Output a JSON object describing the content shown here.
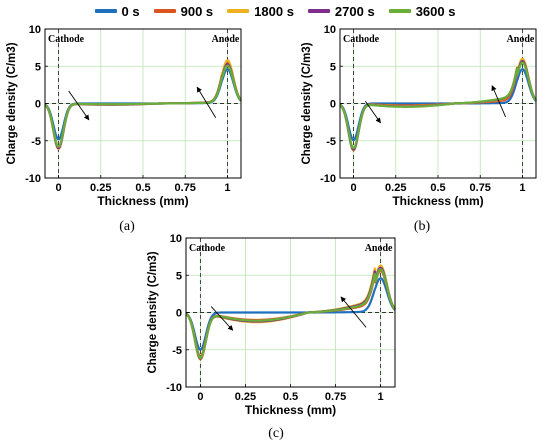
{
  "legend": [
    {
      "label": "0 s",
      "color": "#1f6fbf"
    },
    {
      "label": "900 s",
      "color": "#d9541e"
    },
    {
      "label": "1800 s",
      "color": "#edb120"
    },
    {
      "label": "2700 s",
      "color": "#7e2f8e"
    },
    {
      "label": "3600 s",
      "color": "#6aae3a"
    }
  ],
  "chart_data": [
    {
      "panel_label": "(a)",
      "type": "line",
      "xlabel": "Thickness (mm)",
      "ylabel": "Charge density (C/m3)",
      "xlim": [
        -0.08,
        1.08
      ],
      "ylim": [
        -10,
        10
      ],
      "xticks": [
        "0",
        "0.25",
        "0.5",
        "0.75",
        "1"
      ],
      "xtick_values": [
        0,
        0.25,
        0.5,
        0.75,
        1
      ],
      "yticks": [
        "-10",
        "-5",
        "0",
        "5",
        "10"
      ],
      "ytick_values": [
        -10,
        -5,
        0,
        5,
        10
      ],
      "grid": true,
      "annotations": [
        "Cathode",
        "Anode"
      ],
      "arrows": [
        {
          "from": [
            0.06,
            1.7
          ],
          "to": [
            0.18,
            -2.2
          ]
        },
        {
          "from": [
            0.93,
            -1.9
          ],
          "to": [
            0.82,
            2.2
          ]
        }
      ],
      "series": [
        {
          "name": "0 s",
          "cathode_peak": -4.8,
          "anode_peak": 4.6,
          "bulk": 0,
          "tail": 0.05
        },
        {
          "name": "900 s",
          "cathode_peak": -5.9,
          "anode_peak": 5.6,
          "bulk": -0.12,
          "tail": 0.1
        },
        {
          "name": "1800 s",
          "cathode_peak": -6.1,
          "anode_peak": 5.8,
          "bulk": -0.18,
          "tail": 0.12
        },
        {
          "name": "2700 s",
          "cathode_peak": -6.0,
          "anode_peak": 5.3,
          "bulk": -0.15,
          "tail": 0.1
        },
        {
          "name": "3600 s",
          "cathode_peak": -5.8,
          "anode_peak": 5.1,
          "bulk": -0.1,
          "tail": 0.08
        }
      ]
    },
    {
      "panel_label": "(b)",
      "type": "line",
      "xlabel": "Thickness (mm)",
      "ylabel": "Charge density (C/m3)",
      "xlim": [
        -0.08,
        1.08
      ],
      "ylim": [
        -10,
        10
      ],
      "xticks": [
        "0",
        "0.25",
        "0.5",
        "0.75",
        "1"
      ],
      "xtick_values": [
        0,
        0.25,
        0.5,
        0.75,
        1
      ],
      "yticks": [
        "-10",
        "-5",
        "0",
        "5",
        "10"
      ],
      "ytick_values": [
        -10,
        -5,
        0,
        5,
        10
      ],
      "grid": true,
      "annotations": [
        "Cathode",
        "Anode"
      ],
      "arrows": [
        {
          "from": [
            0.07,
            0.3
          ],
          "to": [
            0.16,
            -2.6
          ]
        },
        {
          "from": [
            0.9,
            -1.8
          ],
          "to": [
            0.82,
            2.4
          ]
        }
      ],
      "series": [
        {
          "name": "0 s",
          "cathode_peak": -4.9,
          "anode_peak": 4.6,
          "bulk": 0,
          "tail": 0.05
        },
        {
          "name": "900 s",
          "cathode_peak": -6.1,
          "anode_peak": 5.6,
          "bulk": -0.25,
          "tail": 0.3
        },
        {
          "name": "1800 s",
          "cathode_peak": -6.3,
          "anode_peak": 6.0,
          "bulk": -0.35,
          "tail": 0.45
        },
        {
          "name": "2700 s",
          "cathode_peak": -6.2,
          "anode_peak": 5.7,
          "bulk": -0.4,
          "tail": 0.5
        },
        {
          "name": "3600 s",
          "cathode_peak": -6.0,
          "anode_peak": 5.5,
          "bulk": -0.45,
          "tail": 0.55
        }
      ]
    },
    {
      "panel_label": "(c)",
      "type": "line",
      "xlabel": "Thickness (mm)",
      "ylabel": "Charge density (C/m3)",
      "xlim": [
        -0.08,
        1.08
      ],
      "ylim": [
        -10,
        10
      ],
      "xticks": [
        "0",
        "0.25",
        "0.5",
        "0.75",
        "1"
      ],
      "xtick_values": [
        0,
        0.25,
        0.5,
        0.75,
        1
      ],
      "yticks": [
        "-10",
        "-5",
        "0",
        "5",
        "10"
      ],
      "ytick_values": [
        -10,
        -5,
        0,
        5,
        10
      ],
      "grid": true,
      "annotations": [
        "Cathode",
        "Anode"
      ],
      "arrows": [
        {
          "from": [
            0.06,
            0.8
          ],
          "to": [
            0.18,
            -2.4
          ]
        },
        {
          "from": [
            0.92,
            -2.0
          ],
          "to": [
            0.78,
            2.1
          ]
        }
      ],
      "series": [
        {
          "name": "0 s",
          "cathode_peak": -5.0,
          "anode_peak": 4.6,
          "bulk": 0,
          "tail": 0.05
        },
        {
          "name": "900 s",
          "cathode_peak": -5.9,
          "anode_peak": 5.6,
          "bulk": -1.0,
          "tail": 0.6
        },
        {
          "name": "1800 s",
          "cathode_peak": -6.3,
          "anode_peak": 6.3,
          "bulk": -1.3,
          "tail": 0.9
        },
        {
          "name": "2700 s",
          "cathode_peak": -6.2,
          "anode_peak": 6.0,
          "bulk": -1.2,
          "tail": 0.8
        },
        {
          "name": "3600 s",
          "cathode_peak": -6.1,
          "anode_peak": 5.8,
          "bulk": -1.1,
          "tail": 0.7
        }
      ]
    }
  ]
}
